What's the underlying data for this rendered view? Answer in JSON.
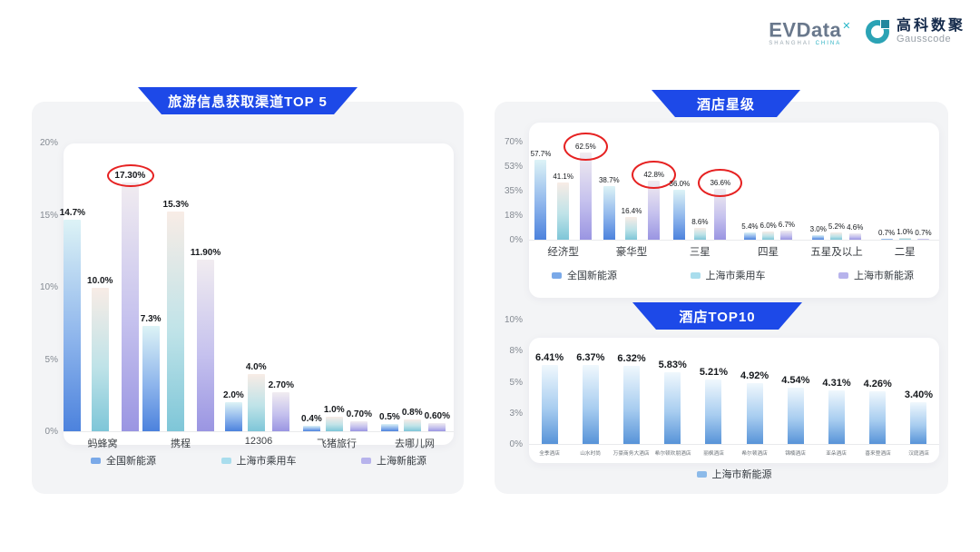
{
  "header": {
    "evdata": {
      "name": "EVData",
      "sup": "✕",
      "sub_left": "SHANGHAI",
      "sub_right": "CHINA"
    },
    "gausscode": {
      "cn": "高科数聚",
      "en": "Gausscode"
    }
  },
  "palette": {
    "banner_blue": "#1d49e8",
    "circle_red": "#e62222",
    "blue": {
      "grad": [
        "#ddf3f6",
        "#8fb6ec",
        "#4c82dd"
      ],
      "swatch": "#7aa9e8"
    },
    "teal": {
      "grad": [
        "#f8ece6",
        "#bfe3e8",
        "#7ec6d8"
      ],
      "swatch": "#a9dded"
    },
    "purple": {
      "grad": [
        "#f1ecf0",
        "#c6c2ee",
        "#9a95e2"
      ],
      "swatch": "#b7b3ec"
    },
    "skyblue": {
      "grad": [
        "#f0f8fd",
        "#a8cdf0",
        "#5793d8"
      ],
      "swatch": "#8cbae9"
    }
  },
  "chart_data": [
    {
      "id": "travel-channels",
      "title": "旅游信息获取渠道TOP 5",
      "type": "bar",
      "ymax": 20,
      "yticks": [
        "20%",
        "15%",
        "10%",
        "5%",
        "0%"
      ],
      "grid": false,
      "legend_position": "bottom",
      "categories": [
        "蚂蜂窝",
        "携程",
        "12306",
        "飞猪旅行",
        "去哪儿网"
      ],
      "series": [
        {
          "name": "全国新能源",
          "color": "blue",
          "values": [
            14.7,
            7.3,
            2.0,
            0.4,
            0.5
          ],
          "labels": [
            "14.7%",
            "7.3%",
            "2.0%",
            "0.4%",
            "0.5%"
          ]
        },
        {
          "name": "上海市乘用车",
          "color": "teal",
          "values": [
            10.0,
            15.3,
            4.0,
            1.0,
            0.8
          ],
          "labels": [
            "10.0%",
            "15.3%",
            "4.0%",
            "1.0%",
            "0.8%"
          ]
        },
        {
          "name": "上海新能源",
          "color": "purple",
          "values": [
            17.3,
            11.9,
            2.7,
            0.7,
            0.6
          ],
          "labels": [
            "17.30%",
            "11.90%",
            "2.70%",
            "0.70%",
            "0.60%"
          ]
        }
      ],
      "circled": [
        [
          2,
          0
        ]
      ],
      "legend": [
        {
          "label": "全国新能源",
          "color": "blue"
        },
        {
          "label": "上海市乘用车",
          "color": "teal"
        },
        {
          "label": "上海新能源",
          "color": "purple"
        }
      ]
    },
    {
      "id": "hotel-star-level",
      "title": "酒店星级",
      "type": "bar",
      "ymax": 70,
      "yticks": [
        "70%",
        "53%",
        "35%",
        "18%",
        "0%"
      ],
      "grid": false,
      "legend_position": "bottom",
      "categories": [
        "经济型",
        "豪华型",
        "三星",
        "四星",
        "五星及以上",
        "二星"
      ],
      "series": [
        {
          "name": "全国新能源",
          "color": "blue",
          "values": [
            57.7,
            38.7,
            36.0,
            5.4,
            3.0,
            0.7
          ],
          "labels": [
            "57.7%",
            "38.7%",
            "36.0%",
            "5.4%",
            "3.0%",
            "0.7%"
          ]
        },
        {
          "name": "上海市乘用车",
          "color": "teal",
          "values": [
            41.1,
            16.4,
            8.6,
            6.0,
            5.2,
            1.0
          ],
          "labels": [
            "41.1%",
            "16.4%",
            "8.6%",
            "6.0%",
            "5.2%",
            "1.0%"
          ]
        },
        {
          "name": "上海市新能源",
          "color": "purple",
          "values": [
            62.5,
            42.8,
            36.6,
            6.7,
            4.6,
            0.7
          ],
          "labels": [
            "62.5%",
            "42.8%",
            "36.6%",
            "6.7%",
            "4.6%",
            "0.7%"
          ]
        }
      ],
      "circled": [
        [
          2,
          0
        ],
        [
          2,
          1
        ],
        [
          2,
          2
        ]
      ],
      "legend": [
        {
          "label": "全国新能源",
          "color": "blue"
        },
        {
          "label": "上海市乘用车",
          "color": "teal"
        },
        {
          "label": "上海市新能源",
          "color": "purple"
        }
      ]
    },
    {
      "id": "hotel-top10",
      "title": "酒店TOP10",
      "type": "bar",
      "ymax": 10,
      "yticks": [
        "10%",
        "8%",
        "5%",
        "3%",
        "0%"
      ],
      "grid": false,
      "legend_position": "bottom",
      "categories": [
        "全季酒店",
        "山水时尚",
        "万豪商务大酒店",
        "希尔顿欢朋酒店",
        "丽枫酒店",
        "希尔顿酒店",
        "锦楠酒店",
        "亚朵酒店",
        "喜来登酒店",
        "汉庭酒店"
      ],
      "series": [
        {
          "name": "上海市新能源",
          "color": "skyblue",
          "values": [
            6.41,
            6.37,
            6.32,
            5.83,
            5.21,
            4.92,
            4.54,
            4.31,
            4.26,
            3.4
          ],
          "labels": [
            "6.41%",
            "6.37%",
            "6.32%",
            "5.83%",
            "5.21%",
            "4.92%",
            "4.54%",
            "4.31%",
            "4.26%",
            "3.40%"
          ]
        }
      ],
      "circled": [],
      "legend": [
        {
          "label": "上海市新能源",
          "color": "skyblue"
        }
      ]
    }
  ]
}
